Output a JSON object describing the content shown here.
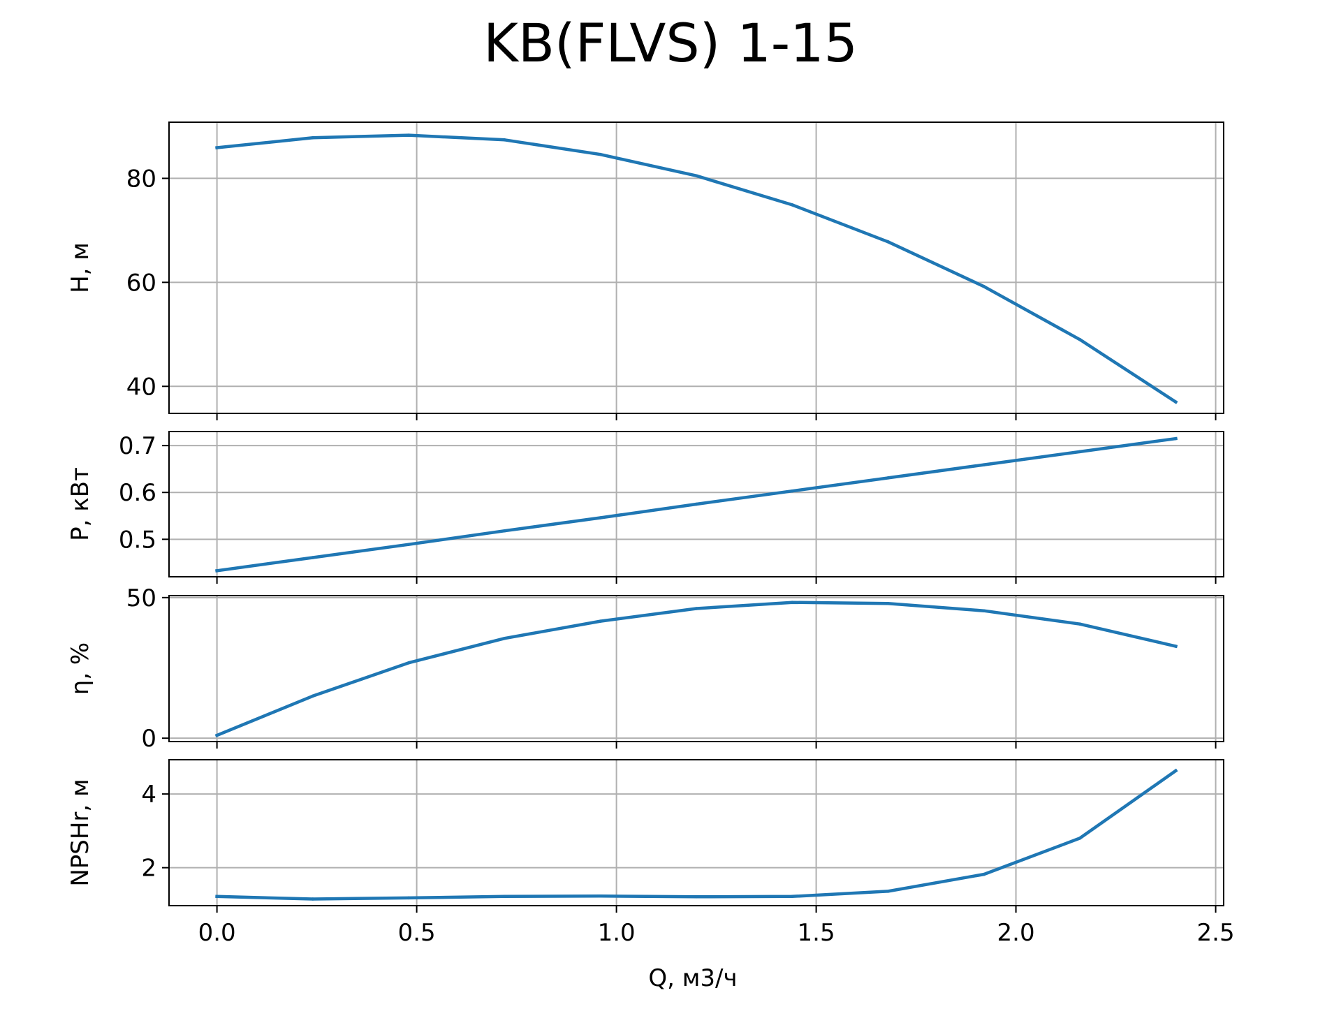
{
  "chart_data": {
    "type": "line",
    "title": "KB(FLVS) 1-15",
    "xlabel": "Q, м3/ч",
    "x": [
      0.0,
      0.24,
      0.48,
      0.72,
      0.96,
      1.2,
      1.44,
      1.68,
      1.92,
      2.16,
      2.4
    ],
    "xlim": [
      -0.12,
      2.52
    ],
    "xticks": [
      0.0,
      0.5,
      1.0,
      1.5,
      2.0,
      2.5
    ],
    "xtick_labels": [
      "0.0",
      "0.5",
      "1.0",
      "1.5",
      "2.0",
      "2.5"
    ],
    "grid": true,
    "line_color": "#1f77b4",
    "panels": [
      {
        "ylabel": "H, м",
        "ylim": [
          34.8,
          90.8
        ],
        "yticks": [
          40,
          60,
          80
        ],
        "ytick_labels": [
          "40",
          "60",
          "80"
        ],
        "values": [
          85.9,
          87.8,
          88.3,
          87.4,
          84.6,
          80.5,
          74.9,
          67.8,
          59.2,
          49.0,
          37.0
        ]
      },
      {
        "ylabel": "P, кВт",
        "ylim": [
          0.42,
          0.73
        ],
        "yticks": [
          0.5,
          0.6,
          0.7
        ],
        "ytick_labels": [
          "0.5",
          "0.6",
          "0.7"
        ],
        "values": [
          0.433,
          0.461,
          0.489,
          0.518,
          0.546,
          0.575,
          0.603,
          0.631,
          0.659,
          0.687,
          0.715
        ]
      },
      {
        "ylabel": "η, %",
        "ylim": [
          -1.2,
          50.7
        ],
        "yticks": [
          0,
          50
        ],
        "ytick_labels": [
          "0",
          "50"
        ],
        "values": [
          1.0,
          15.0,
          26.8,
          35.5,
          41.6,
          46.1,
          48.3,
          47.9,
          45.3,
          40.6,
          32.7
        ]
      },
      {
        "ylabel": "NPSHr, м",
        "ylim": [
          0.97,
          4.93
        ],
        "yticks": [
          2,
          4
        ],
        "ytick_labels": [
          "2",
          "4"
        ],
        "values": [
          1.22,
          1.15,
          1.18,
          1.22,
          1.23,
          1.21,
          1.22,
          1.36,
          1.82,
          2.8,
          4.63
        ]
      }
    ]
  }
}
